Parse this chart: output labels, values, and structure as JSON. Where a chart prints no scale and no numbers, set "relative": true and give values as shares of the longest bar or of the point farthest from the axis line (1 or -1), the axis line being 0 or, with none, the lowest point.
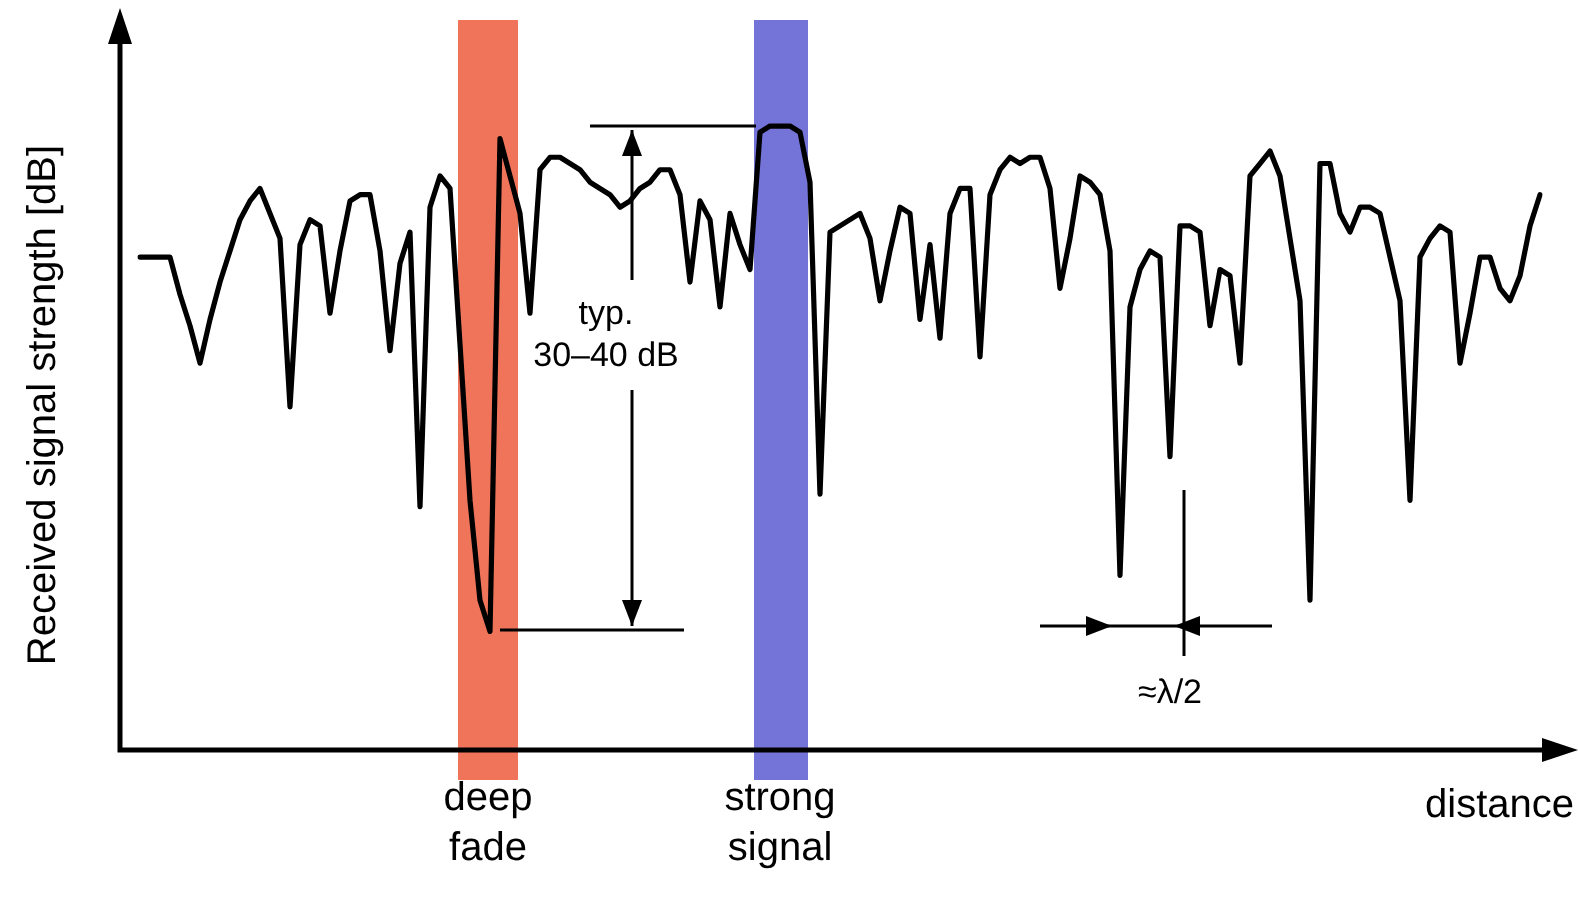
{
  "chart_data": {
    "type": "line",
    "relative": true,
    "ylabel": "Received signal strength [dB]",
    "xlabel": "distance",
    "marker": "none",
    "line_style": "solid",
    "categories": [
      null,
      null,
      null,
      null,
      null,
      null,
      null,
      null,
      null,
      null,
      null,
      null,
      null,
      null,
      null,
      null,
      null,
      null,
      null,
      null,
      null,
      null,
      null,
      null,
      null,
      null,
      null,
      null,
      null,
      null,
      null,
      null,
      null,
      null,
      null,
      null,
      null,
      null,
      null,
      null,
      null,
      null,
      null,
      null,
      null,
      null,
      null,
      null,
      null,
      null,
      null,
      null,
      null,
      null,
      null,
      null,
      null,
      null,
      null,
      null,
      null,
      null,
      null,
      null,
      null,
      null,
      null,
      null,
      null,
      null,
      null,
      null,
      null,
      null,
      null,
      null,
      null,
      null,
      null,
      null,
      null,
      null,
      null,
      null,
      null,
      null,
      null,
      null,
      null,
      null,
      null,
      null,
      null,
      null,
      null,
      null,
      null,
      null,
      null,
      null,
      null,
      null,
      null,
      null,
      null,
      null,
      null,
      null,
      null,
      null,
      null,
      null,
      null,
      null,
      null,
      null,
      null,
      null,
      null,
      null,
      null,
      null,
      null,
      null,
      null,
      null,
      null,
      null,
      null,
      null,
      null,
      null,
      null,
      null,
      null,
      null,
      null,
      null,
      null,
      null,
      null
    ],
    "series": [
      {
        "color": "#000000",
        "values": [
          0.79,
          0.79,
          0.79,
          0.79,
          0.73,
          0.68,
          0.62,
          0.69,
          0.75,
          0.8,
          0.85,
          0.88,
          0.9,
          0.86,
          0.82,
          0.55,
          0.81,
          0.85,
          0.84,
          0.7,
          0.8,
          0.88,
          0.89,
          0.89,
          0.8,
          0.64,
          0.78,
          0.83,
          0.39,
          0.87,
          0.92,
          0.9,
          0.65,
          0.4,
          0.24,
          0.19,
          0.98,
          0.92,
          0.86,
          0.7,
          0.93,
          0.95,
          0.95,
          0.94,
          0.93,
          0.91,
          0.9,
          0.89,
          0.87,
          0.88,
          0.9,
          0.91,
          0.93,
          0.93,
          0.89,
          0.75,
          0.88,
          0.85,
          0.71,
          0.86,
          0.81,
          0.77,
          0.99,
          1,
          1,
          1,
          0.99,
          0.91,
          0.41,
          0.83,
          0.84,
          0.85,
          0.86,
          0.82,
          0.72,
          0.8,
          0.87,
          0.86,
          0.69,
          0.81,
          0.66,
          0.86,
          0.9,
          0.9,
          0.63,
          0.89,
          0.93,
          0.95,
          0.94,
          0.95,
          0.95,
          0.9,
          0.74,
          0.82,
          0.92,
          0.91,
          0.89,
          0.8,
          0.28,
          0.71,
          0.77,
          0.8,
          0.79,
          0.47,
          0.84,
          0.84,
          0.83,
          0.68,
          0.77,
          0.76,
          0.62,
          0.92,
          0.94,
          0.96,
          0.92,
          0.82,
          0.72,
          0.24,
          0.94,
          0.94,
          0.86,
          0.83,
          0.87,
          0.87,
          0.86,
          0.79,
          0.72,
          0.4,
          0.79,
          0.82,
          0.84,
          0.83,
          0.62,
          0.7,
          0.79,
          0.79,
          0.74,
          0.72,
          0.76,
          0.84,
          0.89
        ]
      }
    ],
    "annotations": [
      "typ.\n30–40 dB",
      "≈λ/2",
      "deep fade",
      "strong signal"
    ]
  }
}
